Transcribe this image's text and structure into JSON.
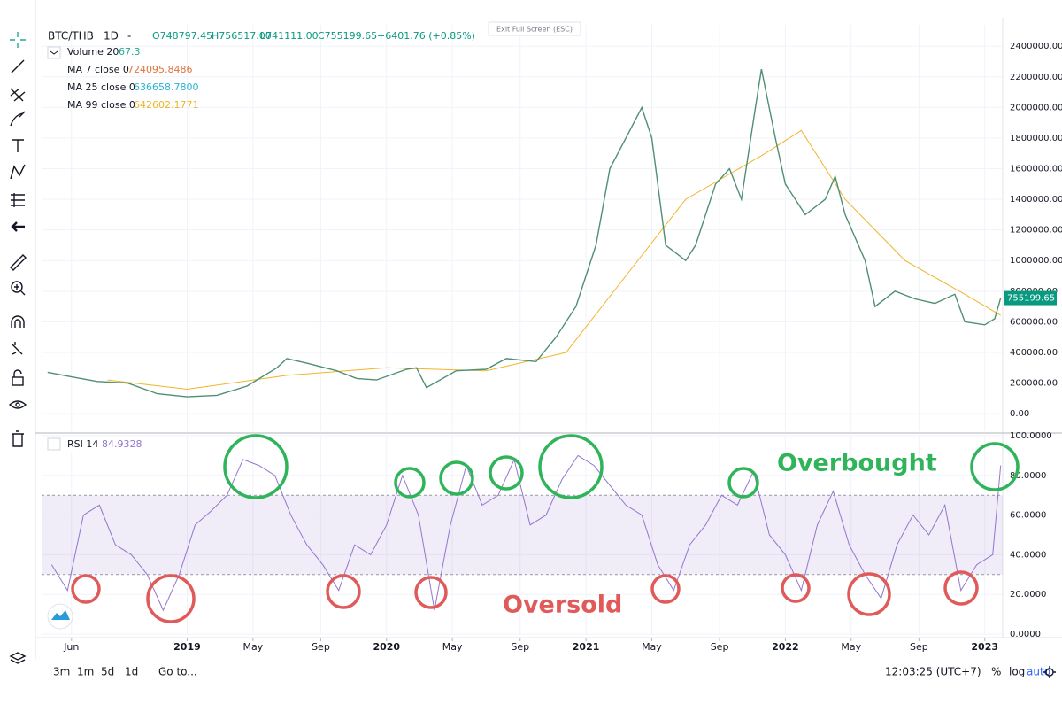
{
  "header": {
    "symbol": "BTC/THB",
    "interval": "1D",
    "dash": "-",
    "open": "O748797.45",
    "high": "H756517.00",
    "low": "L741111.00",
    "close": "C755199.65",
    "change": "+6401.76 (+0.85%)"
  },
  "exit_button": "Exit Full Screen (ESC)",
  "legend": [
    {
      "name": "Volume 20",
      "value": "67.3",
      "color": "#26a69a"
    },
    {
      "name": "MA 7 close 0",
      "value": "724095.8486",
      "color": "#e0733a"
    },
    {
      "name": "MA 25 close 0",
      "value": "636658.7800",
      "color": "#2ab3d1"
    },
    {
      "name": "MA 99 close 0",
      "value": "642602.1771",
      "color": "#f0b429"
    }
  ],
  "chart_data": [
    {
      "type": "line",
      "color": "#4f8f72",
      "x": [
        2018.3,
        2018.42,
        2018.55,
        2018.7,
        2018.85,
        2019.0,
        2019.15,
        2019.3,
        2019.45,
        2019.5,
        2019.6,
        2019.75,
        2019.85,
        2019.95,
        2020.1,
        2020.15,
        2020.2,
        2020.35,
        2020.5,
        2020.6,
        2020.75,
        2020.85,
        2020.95,
        2021.05,
        2021.12,
        2021.2,
        2021.28,
        2021.33,
        2021.4,
        2021.5,
        2021.55,
        2021.65,
        2021.72,
        2021.78,
        2021.85,
        2021.88,
        2021.95,
        2022.0,
        2022.1,
        2022.2,
        2022.25,
        2022.3,
        2022.4,
        2022.45,
        2022.55,
        2022.65,
        2022.75,
        2022.85,
        2022.9,
        2023.0,
        2023.05,
        2023.08
      ],
      "values": [
        270000,
        240000,
        210000,
        200000,
        130000,
        110000,
        120000,
        180000,
        300000,
        360000,
        330000,
        280000,
        230000,
        220000,
        290000,
        300000,
        170000,
        280000,
        290000,
        360000,
        340000,
        500000,
        700000,
        1100000,
        1600000,
        1800000,
        2000000,
        1800000,
        1100000,
        1000000,
        1100000,
        1500000,
        1600000,
        1400000,
        2000000,
        2250000,
        1800000,
        1500000,
        1300000,
        1400000,
        1550000,
        1300000,
        1000000,
        700000,
        800000,
        750000,
        720000,
        780000,
        600000,
        580000,
        620000,
        755000
      ],
      "ma_line": {
        "color": "#f0b429",
        "x": [
          2018.6,
          2019.0,
          2019.5,
          2020.0,
          2020.5,
          2020.9,
          2021.2,
          2021.5,
          2021.9,
          2022.08,
          2022.3,
          2022.6,
          2022.9,
          2023.08
        ],
        "values": [
          220000,
          160000,
          250000,
          300000,
          280000,
          400000,
          900000,
          1400000,
          1700000,
          1850000,
          1400000,
          1000000,
          780000,
          642000
        ]
      },
      "last_price": {
        "value": 755199.65,
        "label": "755199.65"
      },
      "xlim": [
        2018.27,
        2023.09
      ],
      "ylim": [
        -115000,
        2540000
      ],
      "yticks": [
        {
          "value": 0,
          "label": "0.00"
        },
        {
          "value": 200000,
          "label": "200000.00"
        },
        {
          "value": 400000,
          "label": "400000.00"
        },
        {
          "value": 600000,
          "label": "600000.00"
        },
        {
          "value": 800000,
          "label": "800000.00"
        },
        {
          "value": 1000000,
          "label": "1000000.00"
        },
        {
          "value": 1200000,
          "label": "1200000.00"
        },
        {
          "value": 1400000,
          "label": "1400000.00"
        },
        {
          "value": 1600000,
          "label": "1600000.00"
        },
        {
          "value": 1800000,
          "label": "1800000.00"
        },
        {
          "value": 2000000,
          "label": "2000000.00"
        },
        {
          "value": 2200000,
          "label": "2200000.00"
        },
        {
          "value": 2400000,
          "label": "2400000.00"
        }
      ],
      "grid": true
    },
    {
      "type": "line",
      "name": "RSI 14",
      "value_label": "84.9328",
      "color": "#9575cd",
      "x": [
        2018.32,
        2018.4,
        2018.48,
        2018.56,
        2018.64,
        2018.72,
        2018.8,
        2018.88,
        2018.96,
        2019.04,
        2019.12,
        2019.2,
        2019.28,
        2019.36,
        2019.44,
        2019.52,
        2019.6,
        2019.68,
        2019.76,
        2019.84,
        2019.92,
        2020.0,
        2020.08,
        2020.16,
        2020.24,
        2020.32,
        2020.4,
        2020.48,
        2020.56,
        2020.64,
        2020.72,
        2020.8,
        2020.88,
        2020.96,
        2021.04,
        2021.12,
        2021.2,
        2021.28,
        2021.36,
        2021.44,
        2021.52,
        2021.6,
        2021.68,
        2021.76,
        2021.84,
        2021.92,
        2022.0,
        2022.08,
        2022.16,
        2022.24,
        2022.32,
        2022.4,
        2022.48,
        2022.56,
        2022.64,
        2022.72,
        2022.8,
        2022.88,
        2022.96,
        2023.04,
        2023.08
      ],
      "values": [
        35,
        22,
        60,
        65,
        45,
        40,
        30,
        12,
        30,
        55,
        62,
        70,
        88,
        85,
        80,
        60,
        45,
        35,
        22,
        45,
        40,
        55,
        80,
        60,
        12,
        55,
        85,
        65,
        70,
        88,
        55,
        60,
        78,
        90,
        85,
        75,
        65,
        60,
        35,
        22,
        45,
        55,
        70,
        65,
        82,
        50,
        40,
        22,
        55,
        72,
        45,
        30,
        18,
        45,
        60,
        50,
        65,
        22,
        35,
        40,
        85
      ],
      "band": [
        30,
        70
      ],
      "xlim": [
        2018.27,
        2023.09
      ],
      "ylim": [
        0,
        100
      ],
      "yticks": [
        {
          "value": 0,
          "label": "0.0000"
        },
        {
          "value": 20,
          "label": "20.0000"
        },
        {
          "value": 40,
          "label": "40.0000"
        },
        {
          "value": 60,
          "label": "60.0000"
        },
        {
          "value": 80,
          "label": "80.0000"
        },
        {
          "value": 100,
          "label": "100.0000"
        }
      ],
      "xticks": [
        {
          "value": 2018.42,
          "label": "Jun"
        },
        {
          "value": 2019,
          "label": "2019"
        },
        {
          "value": 2019.33,
          "label": "May"
        },
        {
          "value": 2019.67,
          "label": "Sep"
        },
        {
          "value": 2020,
          "label": "2020"
        },
        {
          "value": 2020.33,
          "label": "May"
        },
        {
          "value": 2020.67,
          "label": "Sep"
        },
        {
          "value": 2021,
          "label": "2021"
        },
        {
          "value": 2021.33,
          "label": "May"
        },
        {
          "value": 2021.67,
          "label": "Sep"
        },
        {
          "value": 2022,
          "label": "2022"
        },
        {
          "value": 2022.33,
          "label": "May"
        },
        {
          "value": 2022.67,
          "label": "Sep"
        },
        {
          "value": 2023,
          "label": "2023"
        }
      ],
      "grid": true
    }
  ],
  "annotations": {
    "overbought": "Overbought",
    "oversold": "Oversold"
  },
  "bottom_bar": {
    "ranges": [
      "3m",
      "1m",
      "5d",
      "1d"
    ],
    "goto": "Go to...",
    "time": "12:03:25 (UTC+7)",
    "percent": "%",
    "log": "log",
    "auto": "auto"
  }
}
